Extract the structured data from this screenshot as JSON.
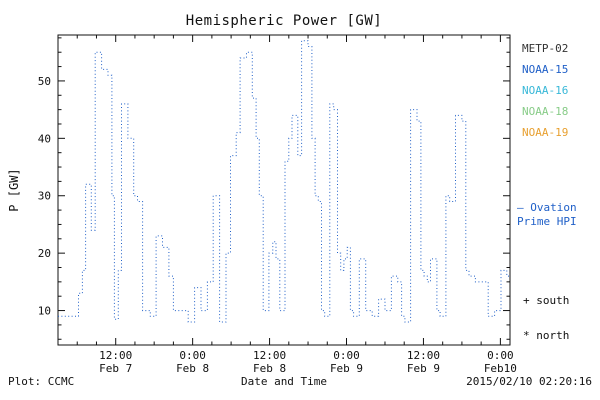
{
  "footer": {
    "plot_credit": "Plot: CCMC",
    "timestamp": "2015/02/10 02:20:16"
  },
  "chart_data": {
    "type": "line",
    "style": "dotted step function",
    "title": "Hemispheric Power [GW]",
    "xlabel": "Date and Time",
    "ylabel": "P [GW]",
    "color": "#2060c8",
    "grid": false,
    "legend_position": "right",
    "x_unit": "hours from 2015 Feb 7 00:00",
    "xlim_hours": [
      3,
      73.5
    ],
    "ylim": [
      4,
      58
    ],
    "yticks": [
      10,
      20,
      30,
      40,
      50
    ],
    "xticks": [
      {
        "hour": 12,
        "label": "12:00",
        "sublabel": "Feb 7"
      },
      {
        "hour": 24,
        "label": "0:00",
        "sublabel": "Feb 8"
      },
      {
        "hour": 36,
        "label": "12:00",
        "sublabel": "Feb 8"
      },
      {
        "hour": 48,
        "label": "0:00",
        "sublabel": "Feb 9"
      },
      {
        "hour": 60,
        "label": "12:00",
        "sublabel": "Feb 9"
      },
      {
        "hour": 72,
        "label": "0:00",
        "sublabel": "Feb10"
      }
    ],
    "x_hours": [
      3,
      5.5,
      6.2,
      6.8,
      7.3,
      8.2,
      8.8,
      9.8,
      10.8,
      11.4,
      11.8,
      12.4,
      12.9,
      13.9,
      14.8,
      15.4,
      16.2,
      17.4,
      18.3,
      19.3,
      20.3,
      21,
      22.3,
      23.3,
      24.3,
      25.3,
      26.3,
      27.2,
      28.2,
      29.2,
      29.9,
      30.8,
      31.4,
      32.4,
      33.3,
      33.9,
      34.4,
      35,
      35.9,
      36.5,
      37,
      37.6,
      38.4,
      39,
      39.5,
      40.4,
      41,
      42,
      42.6,
      43.1,
      43.6,
      44.1,
      44.6,
      45.4,
      46,
      46.6,
      47.1,
      47.6,
      48.1,
      48.6,
      49.1,
      50,
      51,
      52,
      53,
      54,
      55,
      56,
      56.6,
      57.1,
      58,
      59,
      59.6,
      60.1,
      60.6,
      61.1,
      62.1,
      62.6,
      63.5,
      64.1,
      65,
      66,
      66.6,
      67.1,
      68.1,
      69.1,
      70.1,
      71.1,
      72.1,
      73,
      73.5
    ],
    "p_gw": [
      9,
      9,
      13,
      17,
      32,
      24,
      55,
      52,
      51,
      30,
      8.5,
      17,
      46,
      40,
      30,
      29,
      10,
      9,
      23,
      21,
      16,
      10,
      10,
      8,
      14,
      10,
      15,
      30,
      8,
      20,
      37,
      41,
      54,
      55,
      47,
      40,
      30,
      10,
      20,
      22,
      19,
      10,
      36,
      40,
      44,
      37,
      57,
      56,
      40,
      30,
      29,
      10,
      9,
      46,
      45,
      20,
      17,
      19,
      21,
      10,
      9,
      19,
      10,
      9,
      12,
      10,
      16,
      15,
      9,
      8,
      45,
      43,
      17,
      16,
      15,
      19,
      10,
      9,
      30,
      29,
      44,
      43,
      17,
      16,
      15,
      15,
      9,
      10,
      17,
      16,
      16
    ],
    "legend": {
      "satellites": [
        {
          "label": "METP-02",
          "color": "#333333"
        },
        {
          "label": "NOAA-15",
          "color": "#2060c8"
        },
        {
          "label": "NOAA-16",
          "color": "#38b8d8"
        },
        {
          "label": "NOAA-18",
          "color": "#88cc88"
        },
        {
          "label": "NOAA-19",
          "color": "#e8a030"
        }
      ],
      "note_line1": "— Ovation",
      "note_line2": "Prime HPI",
      "marker_south": "+ south",
      "marker_north": "* north"
    }
  }
}
